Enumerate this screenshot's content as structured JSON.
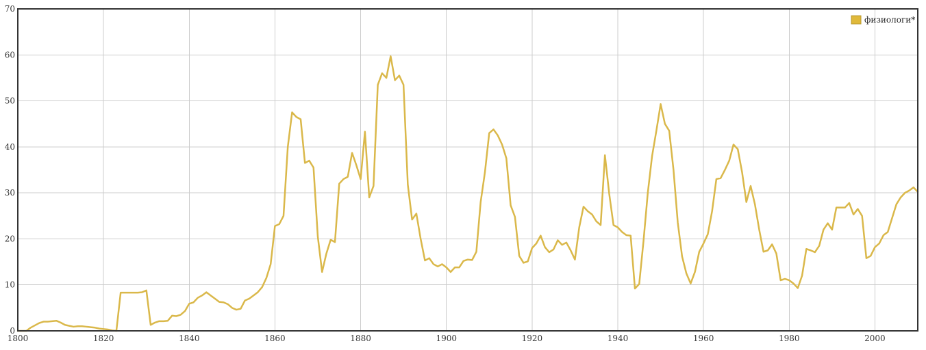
{
  "chart_data": {
    "type": "line",
    "title": "",
    "xlabel": "",
    "ylabel": "",
    "xlim": [
      1800,
      2010
    ],
    "ylim": [
      0,
      70
    ],
    "x_ticks": [
      1800,
      1820,
      1840,
      1860,
      1880,
      1900,
      1920,
      1940,
      1960,
      1980,
      2000
    ],
    "y_ticks": [
      0,
      10,
      20,
      30,
      40,
      50,
      60,
      70
    ],
    "grid": true,
    "legend_position": "top-right",
    "colors": {
      "series": "#dab84a",
      "legend_fill": "#e0b93a",
      "grid": "#cccccc",
      "frame": "#333333"
    },
    "series": [
      {
        "name": "физиологи*",
        "points": [
          [
            1800,
            0
          ],
          [
            1801,
            0
          ],
          [
            1802,
            0
          ],
          [
            1803,
            0.7
          ],
          [
            1804,
            1.2
          ],
          [
            1805,
            1.7
          ],
          [
            1806,
            2
          ],
          [
            1807,
            2
          ],
          [
            1808,
            2.1
          ],
          [
            1809,
            2.2
          ],
          [
            1810,
            1.8
          ],
          [
            1811,
            1.3
          ],
          [
            1812,
            1.1
          ],
          [
            1813,
            0.9
          ],
          [
            1814,
            1
          ],
          [
            1815,
            1
          ],
          [
            1816,
            0.9
          ],
          [
            1817,
            0.8
          ],
          [
            1818,
            0.7
          ],
          [
            1819,
            0.5
          ],
          [
            1820,
            0.4
          ],
          [
            1821,
            0.3
          ],
          [
            1822,
            0.1
          ],
          [
            1823,
            0
          ],
          [
            1824,
            8.3
          ],
          [
            1825,
            8.3
          ],
          [
            1826,
            8.3
          ],
          [
            1827,
            8.3
          ],
          [
            1828,
            8.3
          ],
          [
            1829,
            8.4
          ],
          [
            1830,
            8.8
          ],
          [
            1831,
            1.3
          ],
          [
            1832,
            1.8
          ],
          [
            1833,
            2.1
          ],
          [
            1834,
            2.1
          ],
          [
            1835,
            2.2
          ],
          [
            1836,
            3.3
          ],
          [
            1837,
            3.2
          ],
          [
            1838,
            3.5
          ],
          [
            1839,
            4.3
          ],
          [
            1840,
            5.9
          ],
          [
            1841,
            6.2
          ],
          [
            1842,
            7.2
          ],
          [
            1843,
            7.7
          ],
          [
            1844,
            8.4
          ],
          [
            1845,
            7.7
          ],
          [
            1846,
            7
          ],
          [
            1847,
            6.3
          ],
          [
            1848,
            6.2
          ],
          [
            1849,
            5.8
          ],
          [
            1850,
            5
          ],
          [
            1851,
            4.6
          ],
          [
            1852,
            4.8
          ],
          [
            1853,
            6.6
          ],
          [
            1854,
            7
          ],
          [
            1855,
            7.7
          ],
          [
            1856,
            8.4
          ],
          [
            1857,
            9.5
          ],
          [
            1858,
            11.5
          ],
          [
            1859,
            14.5
          ],
          [
            1860,
            22.8
          ],
          [
            1861,
            23.2
          ],
          [
            1862,
            25
          ],
          [
            1863,
            40
          ],
          [
            1864,
            47.5
          ],
          [
            1865,
            46.5
          ],
          [
            1866,
            46
          ],
          [
            1867,
            36.5
          ],
          [
            1868,
            37
          ],
          [
            1869,
            35.5
          ],
          [
            1870,
            20.5
          ],
          [
            1871,
            12.8
          ],
          [
            1872,
            16.8
          ],
          [
            1873,
            19.8
          ],
          [
            1874,
            19.3
          ],
          [
            1875,
            32
          ],
          [
            1876,
            33
          ],
          [
            1877,
            33.5
          ],
          [
            1878,
            38.7
          ],
          [
            1879,
            36
          ],
          [
            1880,
            33
          ],
          [
            1881,
            43.3
          ],
          [
            1882,
            29
          ],
          [
            1883,
            31.5
          ],
          [
            1884,
            53.5
          ],
          [
            1885,
            56
          ],
          [
            1886,
            55
          ],
          [
            1887,
            59.7
          ],
          [
            1888,
            54.5
          ],
          [
            1889,
            55.5
          ],
          [
            1890,
            53.5
          ],
          [
            1891,
            31.8
          ],
          [
            1892,
            24.2
          ],
          [
            1893,
            25.5
          ],
          [
            1894,
            20
          ],
          [
            1895,
            15.3
          ],
          [
            1896,
            15.8
          ],
          [
            1897,
            14.5
          ],
          [
            1898,
            14
          ],
          [
            1899,
            14.5
          ],
          [
            1900,
            13.8
          ],
          [
            1901,
            12.8
          ],
          [
            1902,
            13.8
          ],
          [
            1903,
            13.8
          ],
          [
            1904,
            15.2
          ],
          [
            1905,
            15.5
          ],
          [
            1906,
            15.4
          ],
          [
            1907,
            17.2
          ],
          [
            1908,
            28
          ],
          [
            1909,
            34.5
          ],
          [
            1910,
            43
          ],
          [
            1911,
            43.8
          ],
          [
            1912,
            42.5
          ],
          [
            1913,
            40.5
          ],
          [
            1914,
            37.5
          ],
          [
            1915,
            27.3
          ],
          [
            1916,
            24.8
          ],
          [
            1917,
            16.3
          ],
          [
            1918,
            14.8
          ],
          [
            1919,
            15.1
          ],
          [
            1920,
            18
          ],
          [
            1921,
            19
          ],
          [
            1922,
            20.7
          ],
          [
            1923,
            18.2
          ],
          [
            1924,
            17.1
          ],
          [
            1925,
            17.7
          ],
          [
            1926,
            19.7
          ],
          [
            1927,
            18.7
          ],
          [
            1928,
            19.2
          ],
          [
            1929,
            17.5
          ],
          [
            1930,
            15.5
          ],
          [
            1931,
            22.5
          ],
          [
            1932,
            27
          ],
          [
            1933,
            26
          ],
          [
            1934,
            25.3
          ],
          [
            1935,
            23.8
          ],
          [
            1936,
            23
          ],
          [
            1937,
            38.2
          ],
          [
            1938,
            29.8
          ],
          [
            1939,
            23
          ],
          [
            1940,
            22.5
          ],
          [
            1941,
            21.5
          ],
          [
            1942,
            20.8
          ],
          [
            1943,
            20.7
          ],
          [
            1944,
            9.2
          ],
          [
            1945,
            10.2
          ],
          [
            1946,
            19.5
          ],
          [
            1947,
            30
          ],
          [
            1948,
            38
          ],
          [
            1949,
            43.5
          ],
          [
            1950,
            49.3
          ],
          [
            1951,
            45
          ],
          [
            1952,
            43.5
          ],
          [
            1953,
            35
          ],
          [
            1954,
            23.5
          ],
          [
            1955,
            16.2
          ],
          [
            1956,
            12.5
          ],
          [
            1957,
            10.3
          ],
          [
            1958,
            12.8
          ],
          [
            1959,
            17.2
          ],
          [
            1960,
            19
          ],
          [
            1961,
            21
          ],
          [
            1962,
            26
          ],
          [
            1963,
            33
          ],
          [
            1964,
            33.2
          ],
          [
            1965,
            35
          ],
          [
            1966,
            37
          ],
          [
            1967,
            40.5
          ],
          [
            1968,
            39.5
          ],
          [
            1969,
            34.5
          ],
          [
            1970,
            28
          ],
          [
            1971,
            31.5
          ],
          [
            1972,
            27.5
          ],
          [
            1973,
            22
          ],
          [
            1974,
            17.2
          ],
          [
            1975,
            17.5
          ],
          [
            1976,
            18.8
          ],
          [
            1977,
            16.8
          ],
          [
            1978,
            11
          ],
          [
            1979,
            11.3
          ],
          [
            1980,
            11
          ],
          [
            1981,
            10.3
          ],
          [
            1982,
            9.3
          ],
          [
            1983,
            12
          ],
          [
            1984,
            17.8
          ],
          [
            1985,
            17.5
          ],
          [
            1986,
            17.1
          ],
          [
            1987,
            18.5
          ],
          [
            1988,
            22
          ],
          [
            1989,
            23.4
          ],
          [
            1990,
            22
          ],
          [
            1991,
            26.8
          ],
          [
            1992,
            26.8
          ],
          [
            1993,
            26.8
          ],
          [
            1994,
            27.8
          ],
          [
            1995,
            25.3
          ],
          [
            1996,
            26.5
          ],
          [
            1997,
            25
          ],
          [
            1998,
            15.8
          ],
          [
            1999,
            16.3
          ],
          [
            2000,
            18.2
          ],
          [
            2001,
            19
          ],
          [
            2002,
            20.8
          ],
          [
            2003,
            21.5
          ],
          [
            2004,
            24.5
          ],
          [
            2005,
            27.5
          ],
          [
            2006,
            29
          ],
          [
            2007,
            30
          ],
          [
            2008,
            30.5
          ],
          [
            2009,
            31.2
          ],
          [
            2010,
            30.2
          ]
        ]
      }
    ]
  }
}
